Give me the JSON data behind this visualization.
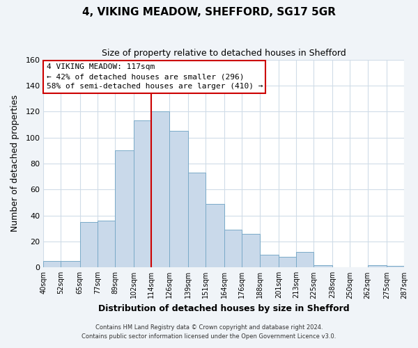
{
  "title": "4, VIKING MEADOW, SHEFFORD, SG17 5GR",
  "subtitle": "Size of property relative to detached houses in Shefford",
  "xlabel": "Distribution of detached houses by size in Shefford",
  "ylabel": "Number of detached properties",
  "bar_left_edges": [
    40,
    52,
    65,
    77,
    89,
    102,
    114,
    126,
    139,
    151,
    164,
    176,
    188,
    201,
    213,
    225,
    238,
    250,
    262,
    275
  ],
  "bar_heights": [
    5,
    5,
    35,
    36,
    90,
    113,
    120,
    105,
    73,
    49,
    29,
    26,
    10,
    8,
    12,
    2,
    0,
    0,
    2,
    1
  ],
  "bar_color": "#c9d9ea",
  "bar_edge_color": "#7aaac8",
  "vline_x": 114,
  "vline_color": "#cc0000",
  "ylim": [
    0,
    160
  ],
  "yticks": [
    0,
    20,
    40,
    60,
    80,
    100,
    120,
    140,
    160
  ],
  "xtick_labels": [
    "40sqm",
    "52sqm",
    "65sqm",
    "77sqm",
    "89sqm",
    "102sqm",
    "114sqm",
    "126sqm",
    "139sqm",
    "151sqm",
    "164sqm",
    "176sqm",
    "188sqm",
    "201sqm",
    "213sqm",
    "225sqm",
    "238sqm",
    "250sqm",
    "262sqm",
    "275sqm",
    "287sqm"
  ],
  "annotation_title": "4 VIKING MEADOW: 117sqm",
  "annotation_line1": "← 42% of detached houses are smaller (296)",
  "annotation_line2": "58% of semi-detached houses are larger (410) →",
  "footer_line1": "Contains HM Land Registry data © Crown copyright and database right 2024.",
  "footer_line2": "Contains public sector information licensed under the Open Government Licence v3.0.",
  "background_color": "#f0f4f8",
  "plot_background_color": "#ffffff",
  "grid_color": "#d0dce8"
}
